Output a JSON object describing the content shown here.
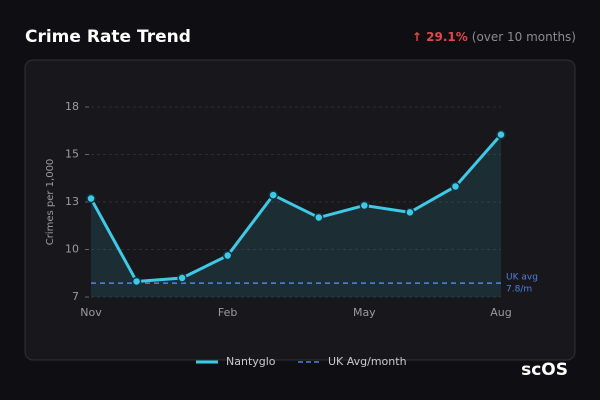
{
  "chart_data": {
    "type": "line",
    "title": "Crime Rate Trend",
    "change": "↑ 29.1%",
    "change_note": "(over 10 months)",
    "y_label": "Crimes per 1,000",
    "categories": [
      "Nov",
      null,
      null,
      "Feb",
      null,
      null,
      "May",
      null,
      null,
      "Aug"
    ],
    "series": [
      {
        "name": "Nantyglo",
        "color": "#3ec9e6",
        "values": [
          12.7,
          7.9,
          8.1,
          9.4,
          12.9,
          11.6,
          12.3,
          11.9,
          13.4,
          16.4
        ]
      }
    ],
    "reference_line": {
      "name": "UK Avg/month",
      "value": 7.8,
      "color": "#4f7fe0",
      "label": [
        "UK avg",
        "7.8/m"
      ]
    },
    "ylim": [
      7,
      18
    ],
    "yticks": [
      7,
      {
        "value": 9.75,
        "label": "10"
      },
      {
        "value": 12.5,
        "label": "13"
      },
      {
        "value": 15.25,
        "label": "15"
      },
      18
    ],
    "grid": true,
    "logo": "scOS"
  }
}
